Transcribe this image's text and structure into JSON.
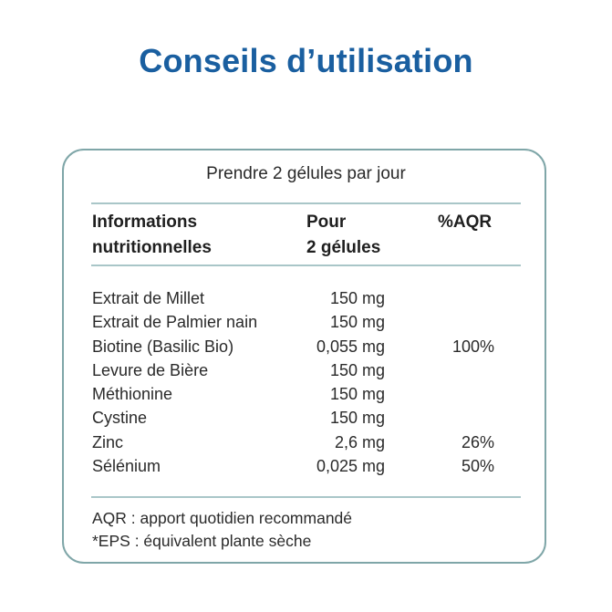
{
  "title": "Conseils d’utilisation",
  "instruction": "Prendre 2 gélules par jour",
  "table": {
    "headers": {
      "col1": [
        "Informations",
        "nutritionnelles"
      ],
      "col2": [
        "Pour",
        "2 gélules"
      ],
      "col3": [
        "%AQR"
      ]
    },
    "rows": [
      {
        "name": "Extrait de Millet",
        "amount": "150 mg",
        "aqr": ""
      },
      {
        "name": "Extrait de Palmier nain",
        "amount": "150 mg",
        "aqr": ""
      },
      {
        "name": "Biotine (Basilic Bio)",
        "amount": "0,055 mg",
        "aqr": "100%"
      },
      {
        "name": "Levure de Bière",
        "amount": "150 mg",
        "aqr": ""
      },
      {
        "name": "Méthionine",
        "amount": "150 mg",
        "aqr": ""
      },
      {
        "name": "Cystine",
        "amount": "150 mg",
        "aqr": ""
      },
      {
        "name": "Zinc",
        "amount": "2,6 mg",
        "aqr": "26%"
      },
      {
        "name": "Sélénium",
        "amount": "0,025 mg",
        "aqr": "50%"
      }
    ]
  },
  "footnotes": [
    "AQR : apport quotidien recommandé",
    "*EPS : équivalent plante sèche"
  ],
  "colors": {
    "title": "#1a5fa0",
    "card_border": "#7fa6a8",
    "rule": "#a9c6c8"
  }
}
